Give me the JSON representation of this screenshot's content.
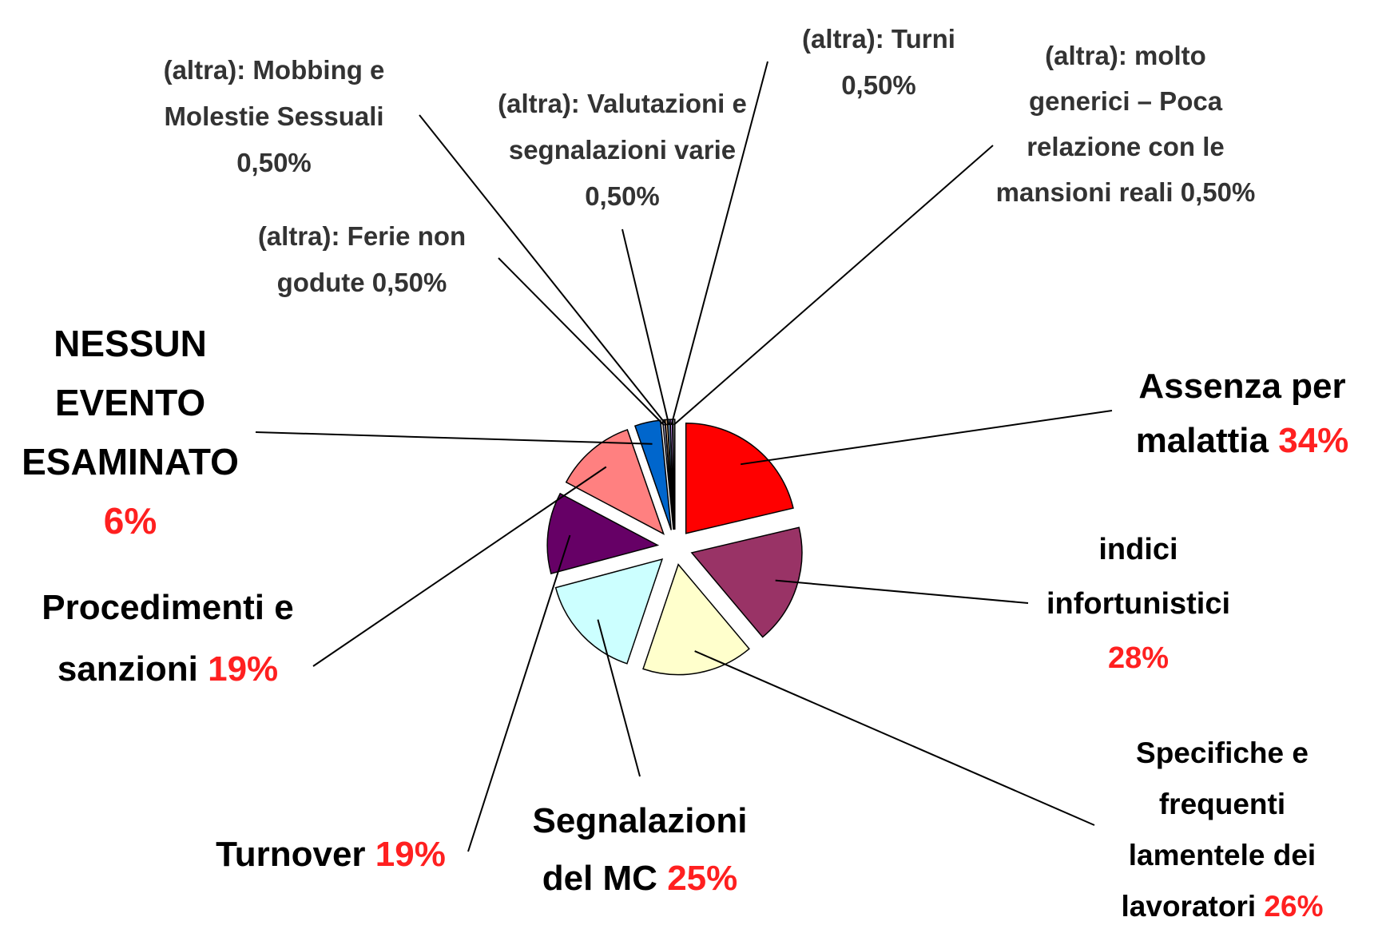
{
  "chart_data": {
    "type": "pie",
    "categories": [
      "Assenza per malattia",
      "indici infortunistici",
      "Specifiche e frequenti lamentele dei lavoratori",
      "Segnalazioni del MC",
      "Turnover",
      "Procedimenti e sanzioni",
      "NESSUN EVENTO ESAMINATO",
      "(altra): Ferie non godute",
      "(altra): Mobbing e Molestie Sessuali",
      "(altra): Valutazioni e segnalazioni varie",
      "(altra): Turni",
      "(altra): molto generici – Poca relazione con le mansioni reali"
    ],
    "values": [
      34,
      28,
      26,
      25,
      19,
      19,
      6,
      0.5,
      0.5,
      0.5,
      0.5,
      0.5
    ],
    "value_labels": [
      "34%",
      "28%",
      "26%",
      "25%",
      "19%",
      "19%",
      "6%",
      "0,50%",
      "0,50%",
      "0,50%",
      "0,50%",
      "0,50%"
    ],
    "colors": [
      "#ff0000",
      "#993366",
      "#ffffcc",
      "#ccffff",
      "#660066",
      "#ff8080",
      "#0066cc",
      "#ccccff",
      "#ffcc99",
      "#99ccff",
      "#cc99ff",
      "#808080"
    ]
  }
}
